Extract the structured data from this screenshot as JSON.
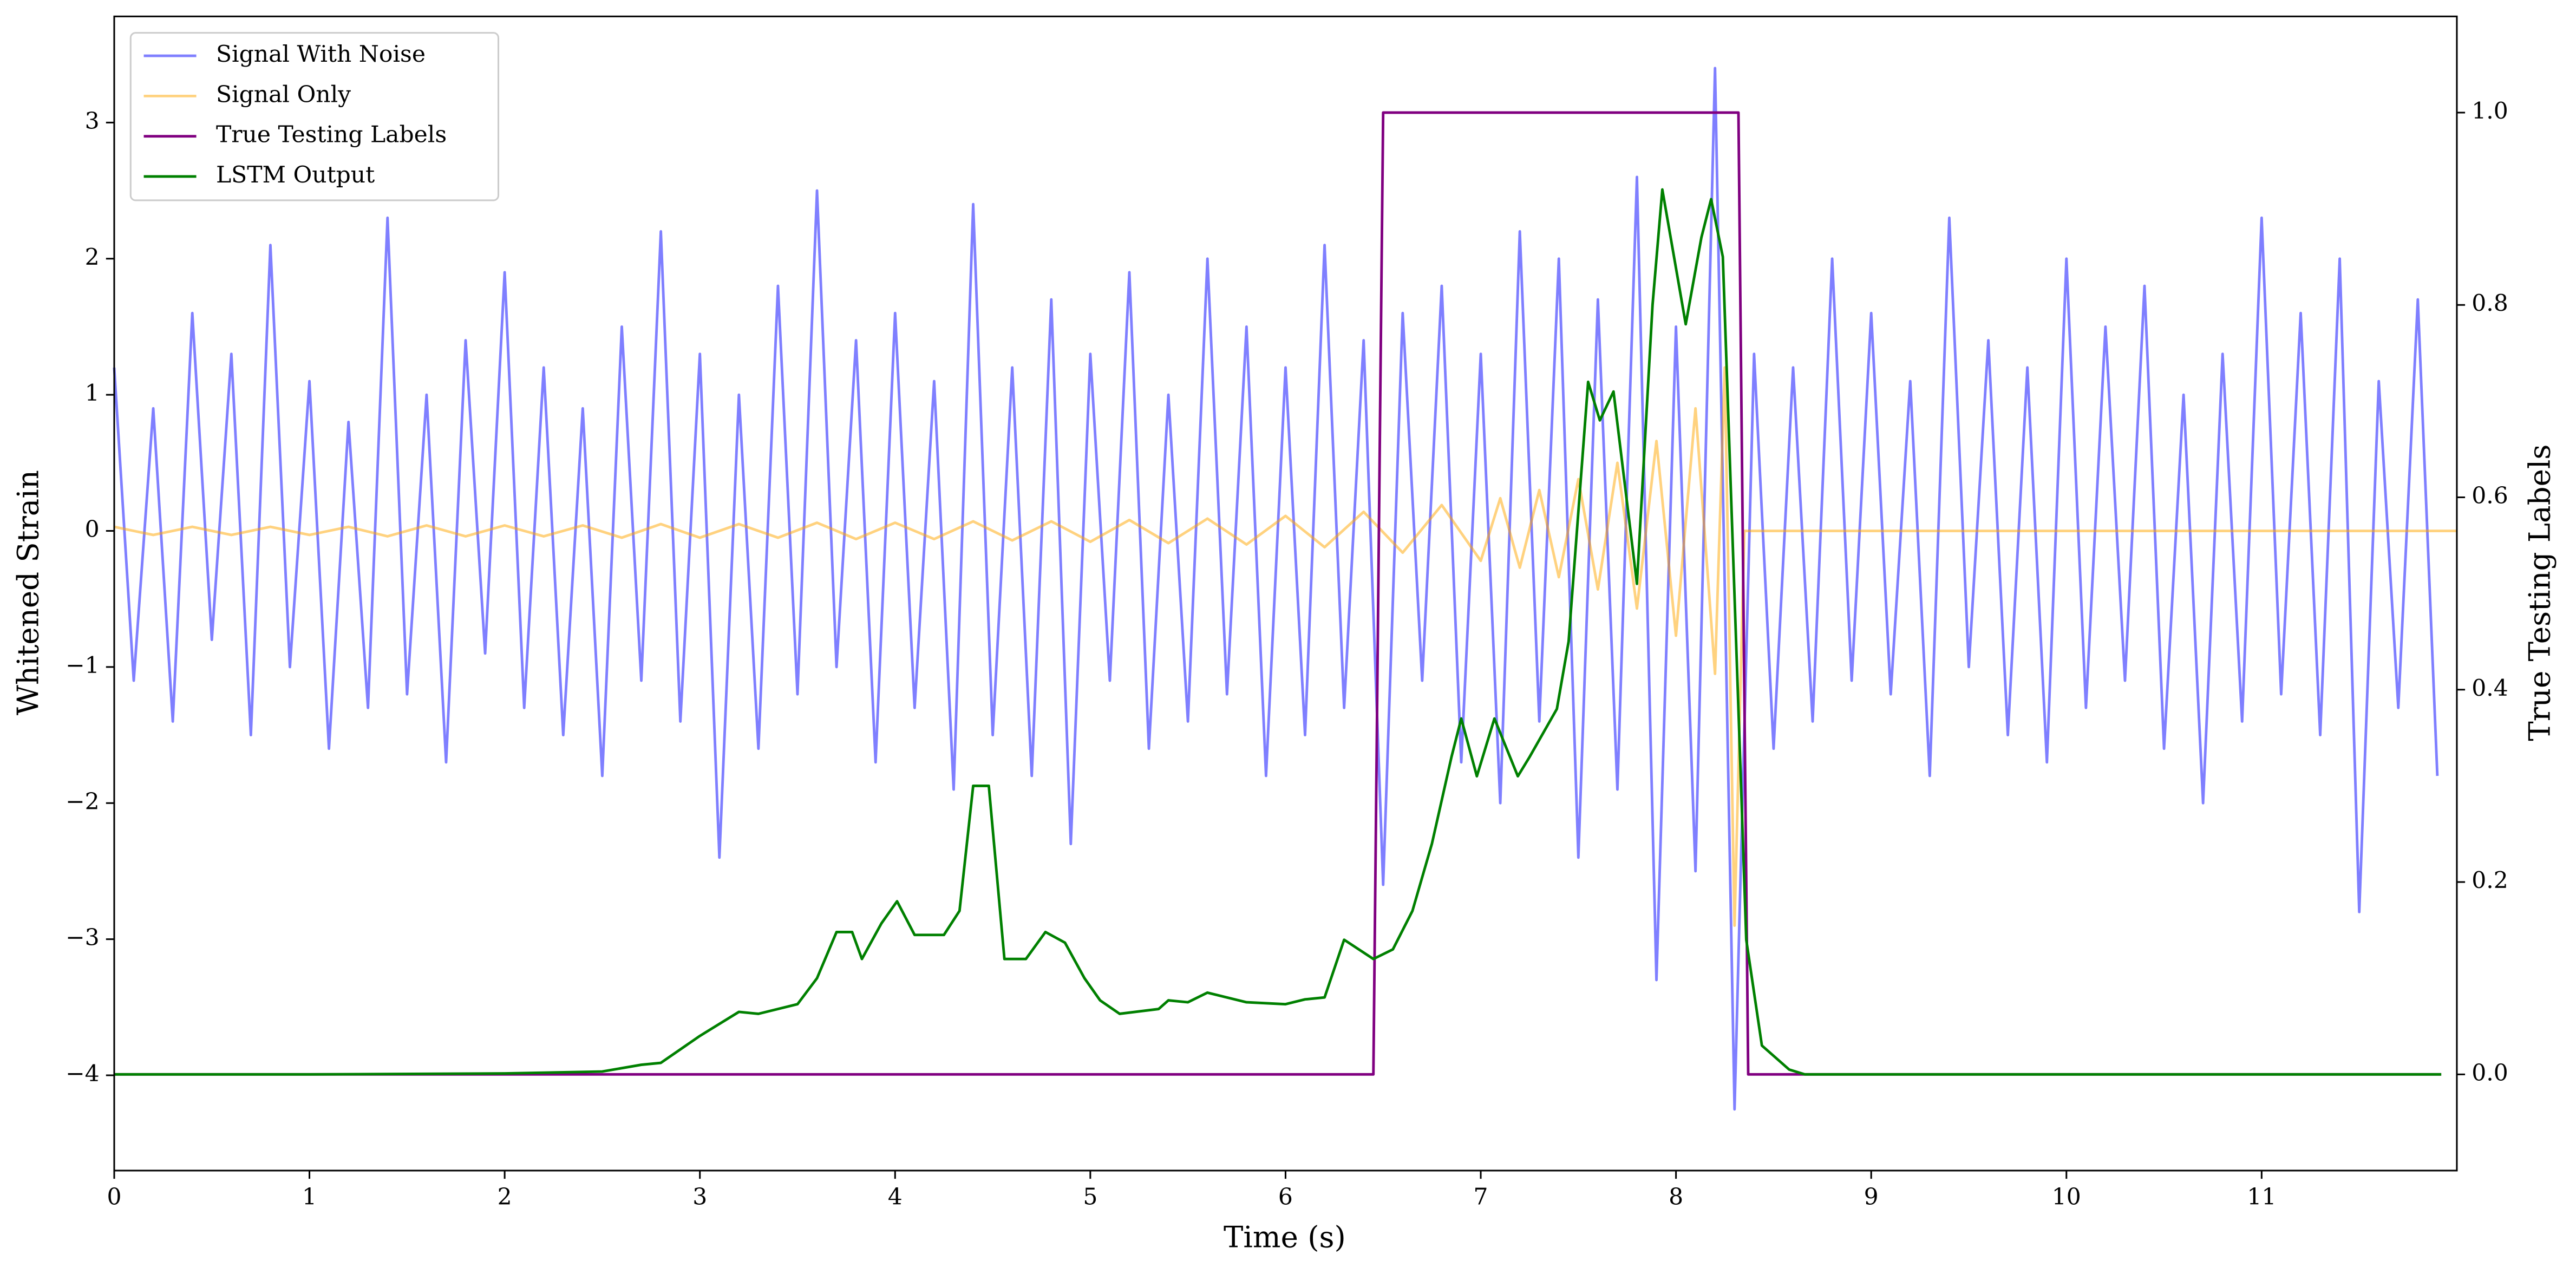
{
  "chart_data": {
    "type": "line",
    "xlabel": "Time (s)",
    "ylabel": "Whitened Strain",
    "y2label": "True Testing Labels",
    "xlim": [
      0,
      12
    ],
    "xticks": [
      0,
      1,
      2,
      3,
      4,
      5,
      6,
      7,
      8,
      9,
      10,
      11
    ],
    "ylim": [
      -4.7,
      3.78
    ],
    "yticks": [
      {
        "value": -4,
        "label": "−4"
      },
      {
        "value": -3,
        "label": "−3"
      },
      {
        "value": -2,
        "label": "−2"
      },
      {
        "value": -1,
        "label": "−1"
      },
      0,
      1,
      2,
      3
    ],
    "y2lim": [
      -0.1,
      1.1
    ],
    "y2ticks": [
      {
        "value": 0,
        "label": "0.0"
      },
      {
        "value": 0.2,
        "label": "0.2"
      },
      {
        "value": 0.4,
        "label": "0.4"
      },
      {
        "value": 0.6,
        "label": "0.6"
      },
      {
        "value": 0.8,
        "label": "0.8"
      },
      {
        "value": 1,
        "label": "1.0"
      }
    ],
    "legend": "upper left",
    "grid": false,
    "series": [
      {
        "name": "Signal With Noise",
        "color": "blue",
        "alpha": 0.5,
        "axis": "y",
        "x": [
          0,
          0.1,
          0.2,
          0.3,
          0.4,
          0.5,
          0.6,
          0.7,
          0.8,
          0.9,
          1,
          1.1,
          1.2,
          1.3,
          1.4,
          1.5,
          1.6,
          1.7,
          1.8,
          1.9,
          2,
          2.1,
          2.2,
          2.3,
          2.4,
          2.5,
          2.6,
          2.7,
          2.8,
          2.9,
          3,
          3.1,
          3.2,
          3.3,
          3.4,
          3.5,
          3.6,
          3.7,
          3.8,
          3.9,
          4,
          4.1,
          4.2,
          4.3,
          4.4,
          4.5,
          4.6,
          4.7,
          4.8,
          4.9,
          5,
          5.1,
          5.2,
          5.3,
          5.4,
          5.5,
          5.6,
          5.7,
          5.8,
          5.9,
          6,
          6.1,
          6.2,
          6.3,
          6.4,
          6.5,
          6.6,
          6.7,
          6.8,
          6.9,
          7,
          7.1,
          7.2,
          7.3,
          7.4,
          7.5,
          7.6,
          7.7,
          7.8,
          7.9,
          8,
          8.1,
          8.2,
          8.3,
          8.4,
          8.5,
          8.6,
          8.7,
          8.8,
          8.9,
          9,
          9.1,
          9.2,
          9.3,
          9.4,
          9.5,
          9.6,
          9.7,
          9.8,
          9.9,
          10,
          10.1,
          10.2,
          10.3,
          10.4,
          10.5,
          10.6,
          10.7,
          10.8,
          10.9,
          11,
          11.1,
          11.2,
          11.3,
          11.4,
          11.5,
          11.6,
          11.7,
          11.8,
          11.9
        ],
        "values": [
          1.2,
          -1.1,
          0.9,
          -1.4,
          1.6,
          -0.8,
          1.3,
          -1.5,
          2.1,
          -1.0,
          1.1,
          -1.6,
          0.8,
          -1.3,
          2.3,
          -1.2,
          1.0,
          -1.7,
          1.4,
          -0.9,
          1.9,
          -1.3,
          1.2,
          -1.5,
          0.9,
          -1.8,
          1.5,
          -1.1,
          2.2,
          -1.4,
          1.3,
          -2.4,
          1.0,
          -1.6,
          1.8,
          -1.2,
          2.5,
          -1.0,
          1.4,
          -1.7,
          1.6,
          -1.3,
          1.1,
          -1.9,
          2.4,
          -1.5,
          1.2,
          -1.8,
          1.7,
          -2.3,
          1.3,
          -1.1,
          1.9,
          -1.6,
          1.0,
          -1.4,
          2.0,
          -1.2,
          1.5,
          -1.8,
          1.2,
          -1.5,
          2.1,
          -1.3,
          1.4,
          -2.6,
          1.6,
          -1.1,
          1.8,
          -1.7,
          1.3,
          -2.0,
          2.2,
          -1.4,
          2.0,
          -2.4,
          1.7,
          -1.9,
          2.6,
          -3.3,
          1.5,
          -2.5,
          3.4,
          -4.25,
          1.3,
          -1.6,
          1.2,
          -1.4,
          2.0,
          -1.1,
          1.6,
          -1.2,
          1.1,
          -1.8,
          2.3,
          -1.0,
          1.4,
          -1.5,
          1.2,
          -1.7,
          2.0,
          -1.3,
          1.5,
          -1.1,
          1.8,
          -1.6,
          1.0,
          -2.0,
          1.3,
          -1.4,
          2.3,
          -1.2,
          1.6,
          -1.5,
          2.0,
          -2.8,
          1.1,
          -1.3,
          1.7,
          -1.8
        ]
      },
      {
        "name": "Signal Only",
        "color": "orange",
        "alpha": 0.5,
        "axis": "y",
        "x": [
          0,
          0.2,
          0.4,
          0.6,
          0.8,
          1,
          1.2,
          1.4,
          1.6,
          1.8,
          2,
          2.2,
          2.4,
          2.6,
          2.8,
          3,
          3.2,
          3.4,
          3.6,
          3.8,
          4,
          4.2,
          4.4,
          4.6,
          4.8,
          5,
          5.2,
          5.4,
          5.6,
          5.8,
          6,
          6.2,
          6.4,
          6.6,
          6.8,
          7,
          7.1,
          7.2,
          7.3,
          7.4,
          7.5,
          7.6,
          7.7,
          7.8,
          7.9,
          8,
          8.1,
          8.2,
          8.25,
          8.3,
          8.35,
          12
        ],
        "values": [
          0.03,
          -0.03,
          0.03,
          -0.03,
          0.03,
          -0.03,
          0.03,
          -0.04,
          0.04,
          -0.04,
          0.04,
          -0.04,
          0.04,
          -0.05,
          0.05,
          -0.05,
          0.05,
          -0.05,
          0.06,
          -0.06,
          0.06,
          -0.06,
          0.07,
          -0.07,
          0.07,
          -0.08,
          0.08,
          -0.09,
          0.09,
          -0.1,
          0.11,
          -0.12,
          0.14,
          -0.16,
          0.19,
          -0.22,
          0.24,
          -0.27,
          0.3,
          -0.34,
          0.38,
          -0.43,
          0.5,
          -0.57,
          0.66,
          -0.77,
          0.9,
          -1.05,
          1.2,
          -2.9,
          0,
          0
        ]
      },
      {
        "name": "True Testing Labels",
        "color": "purple",
        "axis": "y2",
        "x": [
          0,
          6.45,
          6.5,
          8.32,
          8.37,
          11.92
        ],
        "values": [
          0,
          0,
          1,
          1,
          0,
          0
        ]
      },
      {
        "name": "LSTM Output",
        "color": "green",
        "axis": "y2",
        "x": [
          0,
          1,
          2,
          2.5,
          2.7,
          2.8,
          3,
          3.2,
          3.3,
          3.5,
          3.6,
          3.7,
          3.78,
          3.83,
          3.93,
          4.01,
          4.1,
          4.25,
          4.33,
          4.4,
          4.48,
          4.56,
          4.67,
          4.77,
          4.87,
          4.97,
          5.05,
          5.15,
          5.35,
          5.4,
          5.5,
          5.6,
          5.8,
          6,
          6.1,
          6.2,
          6.3,
          6.45,
          6.55,
          6.65,
          6.75,
          6.85,
          6.9,
          6.98,
          7.07,
          7.19,
          7.25,
          7.39,
          7.45,
          7.55,
          7.61,
          7.68,
          7.8,
          7.88,
          7.93,
          8.05,
          8.13,
          8.18,
          8.24,
          8.33,
          8.36,
          8.44,
          8.58,
          8.66,
          11.92
        ],
        "values": [
          0,
          0,
          0.001,
          0.003,
          0.01,
          0.012,
          0.04,
          0.065,
          0.063,
          0.073,
          0.1,
          0.148,
          0.148,
          0.12,
          0.157,
          0.18,
          0.145,
          0.145,
          0.17,
          0.3,
          0.3,
          0.12,
          0.12,
          0.148,
          0.137,
          0.1,
          0.077,
          0.063,
          0.068,
          0.077,
          0.075,
          0.085,
          0.075,
          0.073,
          0.078,
          0.08,
          0.14,
          0.12,
          0.13,
          0.17,
          0.24,
          0.33,
          0.37,
          0.31,
          0.37,
          0.31,
          0.33,
          0.38,
          0.45,
          0.72,
          0.68,
          0.71,
          0.51,
          0.8,
          0.92,
          0.78,
          0.87,
          0.91,
          0.85,
          0.32,
          0.14,
          0.03,
          0.005,
          0,
          0
        ]
      }
    ]
  }
}
